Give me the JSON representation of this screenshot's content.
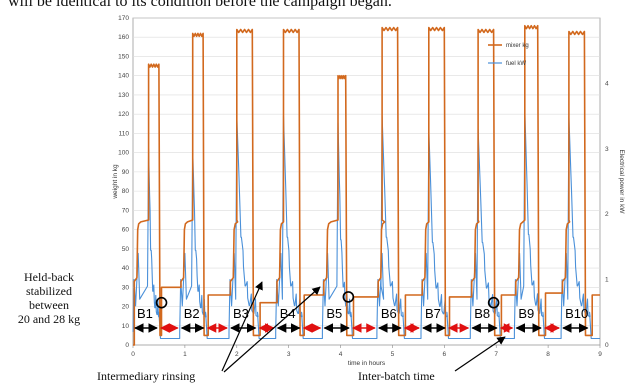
{
  "caption": "will be identical to its condition before the campaign began.",
  "side_note": [
    "Held-back",
    "stabilized",
    "between",
    "20 and 28 kg"
  ],
  "annotations": {
    "intermediary": "Intermediary rinsing",
    "interbatch": "Inter-batch time"
  },
  "colors": {
    "mixer": "#d2691e",
    "fuel": "#4a90d9",
    "arrow_black": "#000000",
    "arrow_red": "#e01010"
  },
  "chart_data": {
    "type": "line",
    "xlabel": "time in hours",
    "ylabel_left": "weight in kg",
    "ylabel_right": "Electrical power in kW",
    "xlim": [
      0,
      9
    ],
    "ylim_left": [
      0,
      170
    ],
    "ylim_right": [
      0,
      5
    ],
    "x_ticks": [
      "0",
      "1",
      "2",
      "3",
      "4",
      "5",
      "6",
      "7",
      "8",
      "9"
    ],
    "y_ticks_left": [
      "0",
      "10",
      "20",
      "30",
      "40",
      "50",
      "60",
      "70",
      "80",
      "90",
      "100",
      "110",
      "120",
      "130",
      "140",
      "150",
      "160",
      "170"
    ],
    "y_ticks_right": [
      "0",
      "1",
      "2",
      "3",
      "4"
    ],
    "legend": [
      "mixer kg",
      "fuel kW"
    ],
    "batches": [
      {
        "label": "B1",
        "start": 0.0,
        "end": 0.5,
        "peak": 146,
        "peak_start": 0.3,
        "peak_end": 0.5
      },
      {
        "label": "B2",
        "start": 0.9,
        "end": 1.4,
        "peak": 162,
        "peak_start": 1.15,
        "peak_end": 1.35
      },
      {
        "label": "B3",
        "start": 1.85,
        "end": 2.4,
        "peak": 164,
        "peak_start": 2.0,
        "peak_end": 2.3
      },
      {
        "label": "B4",
        "start": 2.75,
        "end": 3.25,
        "peak": 164,
        "peak_start": 2.9,
        "peak_end": 3.2
      },
      {
        "label": "B5",
        "start": 3.65,
        "end": 4.2,
        "peak": 140,
        "peak_start": 3.95,
        "peak_end": 4.1
      },
      {
        "label": "B6",
        "start": 4.7,
        "end": 5.2,
        "peak": 165,
        "peak_start": 4.8,
        "peak_end": 5.1
      },
      {
        "label": "B7",
        "start": 5.55,
        "end": 6.05,
        "peak": 165,
        "peak_start": 5.7,
        "peak_end": 6.0
      },
      {
        "label": "B8",
        "start": 6.5,
        "end": 7.05,
        "peak": 164,
        "peak_start": 6.65,
        "peak_end": 6.95
      },
      {
        "label": "B9",
        "start": 7.35,
        "end": 7.9,
        "peak": 166,
        "peak_start": 7.55,
        "peak_end": 7.8
      },
      {
        "label": "B10",
        "start": 8.25,
        "end": 8.8,
        "peak": 163,
        "peak_start": 8.4,
        "peak_end": 8.7
      }
    ],
    "held_back_kg": [
      30,
      26,
      22,
      26,
      25,
      26,
      25,
      26,
      27,
      26
    ],
    "circle_markers": [
      {
        "x": 0.55,
        "y": 22
      },
      {
        "x": 4.15,
        "y": 25
      },
      {
        "x": 6.95,
        "y": 22
      }
    ],
    "arrow_segments": [
      {
        "from": 0.0,
        "to": 0.5,
        "kind": "batch"
      },
      {
        "from": 0.5,
        "to": 0.9,
        "kind": "gap"
      },
      {
        "from": 0.9,
        "to": 1.4,
        "kind": "batch"
      },
      {
        "from": 1.4,
        "to": 1.85,
        "kind": "gap"
      },
      {
        "from": 1.85,
        "to": 2.4,
        "kind": "batch"
      },
      {
        "from": 2.4,
        "to": 2.75,
        "kind": "gap"
      },
      {
        "from": 2.75,
        "to": 3.25,
        "kind": "batch"
      },
      {
        "from": 3.25,
        "to": 3.65,
        "kind": "gap"
      },
      {
        "from": 3.65,
        "to": 4.2,
        "kind": "batch"
      },
      {
        "from": 4.2,
        "to": 4.7,
        "kind": "gap"
      },
      {
        "from": 4.7,
        "to": 5.2,
        "kind": "batch"
      },
      {
        "from": 5.2,
        "to": 5.55,
        "kind": "gap"
      },
      {
        "from": 5.55,
        "to": 6.05,
        "kind": "batch"
      },
      {
        "from": 6.05,
        "to": 6.5,
        "kind": "gap"
      },
      {
        "from": 6.5,
        "to": 7.05,
        "kind": "batch"
      },
      {
        "from": 7.05,
        "to": 7.35,
        "kind": "gap"
      },
      {
        "from": 7.35,
        "to": 7.9,
        "kind": "batch"
      },
      {
        "from": 7.9,
        "to": 8.25,
        "kind": "gap"
      },
      {
        "from": 8.25,
        "to": 8.8,
        "kind": "batch"
      }
    ]
  }
}
